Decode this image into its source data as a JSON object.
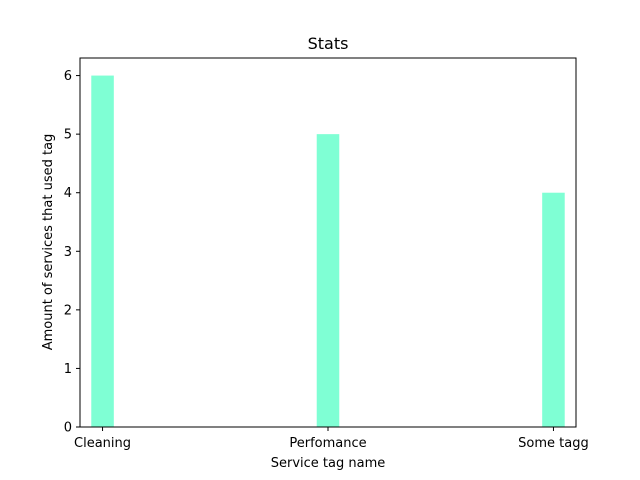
{
  "chart_data": {
    "type": "bar",
    "title": "Stats",
    "xlabel": "Service tag name",
    "ylabel": "Amount of services that used tag",
    "categories": [
      "Cleaning",
      "Perfomance",
      "Some tagg"
    ],
    "values": [
      6,
      5,
      4
    ],
    "ylim": [
      0,
      6.3
    ],
    "yticks": [
      0,
      1,
      2,
      3,
      4,
      5,
      6
    ],
    "grid": false,
    "legend": "none",
    "bar_color": "#7fffd4"
  }
}
